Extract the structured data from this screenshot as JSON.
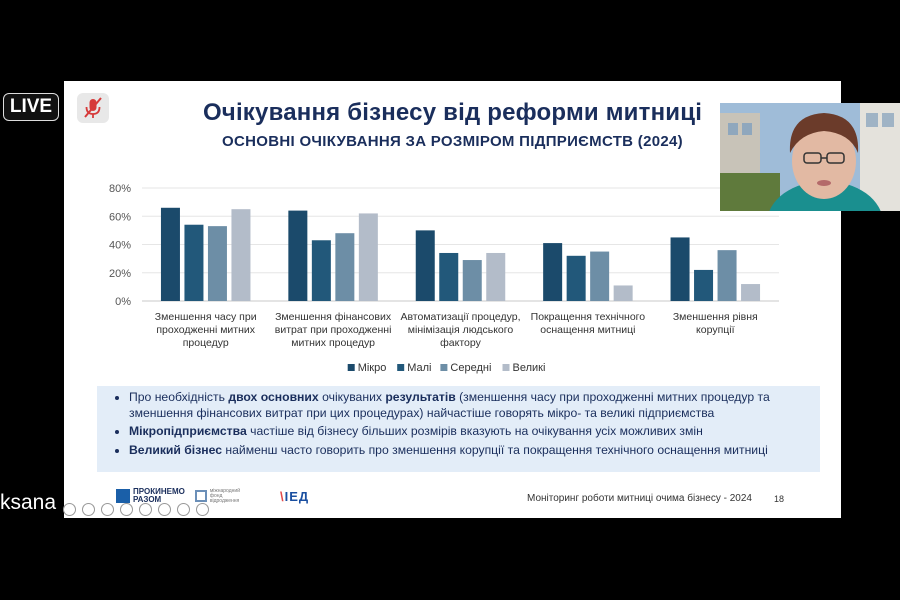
{
  "slide": {
    "title": "Очікування бізнесу від реформи митниці",
    "subtitle": "ОСНОВНІ ОЧІКУВАННЯ ЗА РОЗМІРОМ ПІДПРИЄМСТВ (2024)",
    "footer": "Моніторинг роботи митниці очима бізнесу - 2024",
    "page_number": "18",
    "logos": {
      "first_line1": "ПРОКИНЕМО",
      "first_line2": "РАЗОМ",
      "second_line1": "міжнародний",
      "second_line2": "фонд",
      "second_line3": "відродження",
      "third_main": "ІЕД",
      "third_accent": "\\"
    }
  },
  "chart_data": {
    "type": "bar",
    "categories": [
      [
        "Зменшення часу при",
        "проходженні митних",
        "процедур"
      ],
      [
        "Зменшення фінансових",
        "витрат при проходженні",
        "митних процедур"
      ],
      [
        "Автоматизації процедур,",
        "мінімізація людського",
        "фактору"
      ],
      [
        "Покращення технічного",
        "оснащення митниці"
      ],
      [
        "Зменшення рівня",
        "корупції"
      ]
    ],
    "series": [
      {
        "name": "Мікро",
        "color": "#1b4a6b",
        "values": [
          66,
          64,
          50,
          41,
          45
        ]
      },
      {
        "name": "Малі",
        "color": "#22587a",
        "values": [
          54,
          43,
          34,
          32,
          22
        ]
      },
      {
        "name": "Середні",
        "color": "#6d8ea6",
        "values": [
          53,
          48,
          29,
          35,
          36
        ]
      },
      {
        "name": "Великі",
        "color": "#b3bcc9",
        "values": [
          65,
          62,
          34,
          11,
          12
        ]
      }
    ],
    "y_ticks": [
      "0%",
      "20%",
      "40%",
      "60%",
      "80%"
    ],
    "ylim": [
      0,
      80
    ],
    "legend_position": "bottom",
    "grid": true
  },
  "bullets": [
    {
      "parts": [
        {
          "t": "Про необхідність ",
          "b": false
        },
        {
          "t": "двох основних",
          "b": true
        },
        {
          "t": " очікуваних ",
          "b": false
        },
        {
          "t": "результатів",
          "b": true
        },
        {
          "t": " (зменшення часу при проходженні митних процедур та зменшення фінансових витрат при цих процедурах) найчастіше говорять мікро- та великі підприємства",
          "b": false
        }
      ]
    },
    {
      "parts": [
        {
          "t": "Мікропідприємства",
          "b": true
        },
        {
          "t": " частіше від бізнесу більших розмірів вказують на очікування усіх можливих змін",
          "b": false
        }
      ]
    },
    {
      "parts": [
        {
          "t": "Великий бізнес",
          "b": true
        },
        {
          "t": " найменш часто говорить про зменшення корупції та покращення технічного оснащення митниці",
          "b": false
        }
      ]
    }
  ],
  "overlay": {
    "live_label": "LIVE",
    "participant_name": "ksana"
  }
}
